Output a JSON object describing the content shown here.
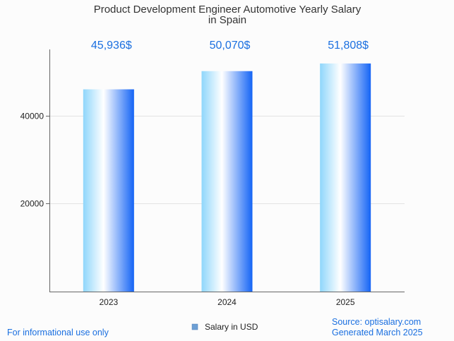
{
  "chart_data": {
    "type": "bar",
    "title": "Product Development Engineer Automotive Yearly Salary in Spain",
    "title_lines": [
      "Product Development Engineer Automotive Yearly Salary",
      "in Spain"
    ],
    "categories": [
      "2023",
      "2024",
      "2025"
    ],
    "series": [
      {
        "name": "Salary in USD",
        "values": [
          45936,
          50070,
          51808
        ],
        "data_labels": [
          "45,936$",
          "50,070$",
          "51,808$"
        ]
      }
    ],
    "yticks": [
      20000,
      40000
    ],
    "ytick_labels": [
      "20000",
      "40000"
    ],
    "ylim": [
      0,
      55000
    ],
    "grid": true,
    "legend_position": "bottom-center",
    "colors": {
      "bar_light": "#8fd6fb",
      "bar_mid": "#ffffff",
      "bar_dark": "#1464f5",
      "label": "#1a6fe0",
      "legend_swatch": "#6d9fd4"
    }
  },
  "footer": {
    "left": "For informational use only",
    "source": "Source: optisalary.com",
    "generated": "Generated March 2025"
  }
}
